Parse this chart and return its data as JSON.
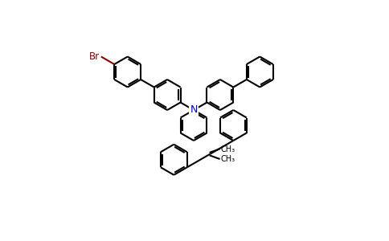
{
  "background_color": "#ffffff",
  "bond_color": "#000000",
  "N_color": "#0000cd",
  "Br_color": "#8b0000",
  "text_color": "#000000",
  "figsize": [
    4.84,
    3.0
  ],
  "dpi": 100,
  "lw": 1.5,
  "r": 19,
  "N_label": "N",
  "Br_label": "Br",
  "ch3_label": "CH₃"
}
